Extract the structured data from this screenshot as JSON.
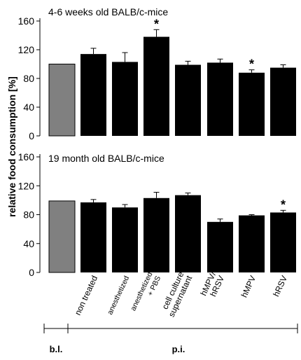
{
  "chart_data": {
    "type": "bar",
    "ylabel": "relative food consumption [%]",
    "categories": [
      "non treated",
      "anesthetized",
      "anesthetized + PBS",
      "cell culture supernatant",
      "hMPV/ hRSV",
      "hMPV",
      "hRSV"
    ],
    "category_lines": [
      [
        "non treated"
      ],
      [
        "anesthetized"
      ],
      [
        "anesthetized",
        "+ PBS"
      ],
      [
        "cell culture",
        "supernatant"
      ],
      [
        "hMPV/",
        "hRSV"
      ],
      [
        "hMPV"
      ],
      [
        "hRSV"
      ]
    ],
    "baseline_label": "",
    "colors": {
      "baseline": "#808080",
      "treated": "#000000"
    },
    "panels": [
      {
        "title": "4-6 weeks old BALB/c-mice",
        "ylim": [
          0,
          160
        ],
        "yticks": [
          0,
          40,
          80,
          120,
          160
        ],
        "baseline_value": 100,
        "values": [
          114,
          103,
          138,
          99,
          102,
          88,
          95
        ],
        "errors": [
          8,
          13,
          10,
          5,
          5,
          4,
          4
        ],
        "significant": [
          false,
          false,
          true,
          false,
          false,
          true,
          false
        ]
      },
      {
        "title": "19 month old BALB/c-mice",
        "ylim": [
          0,
          160
        ],
        "yticks": [
          0,
          40,
          80,
          120,
          160
        ],
        "baseline_value": 99,
        "values": [
          97,
          90,
          103,
          107,
          70,
          79,
          83
        ],
        "errors": [
          4,
          4,
          8,
          3,
          4,
          1,
          3
        ],
        "significant": [
          false,
          false,
          false,
          false,
          false,
          false,
          true
        ]
      }
    ],
    "timeline": {
      "before_label": "b.l.",
      "after_label": "p.i."
    }
  }
}
